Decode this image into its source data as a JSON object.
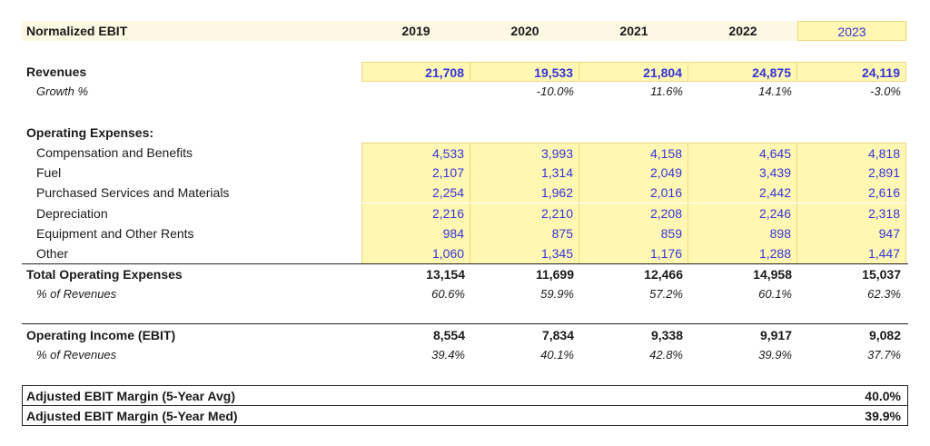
{
  "title": "Normalized EBIT",
  "years": [
    "2019",
    "2020",
    "2021",
    "2022",
    "2023"
  ],
  "revenues": {
    "label": "Revenues",
    "values": [
      "21,708",
      "19,533",
      "21,804",
      "24,875",
      "24,119"
    ]
  },
  "growth": {
    "label": "Growth %",
    "values": [
      "",
      "-10.0%",
      "11.6%",
      "14.1%",
      "-3.0%"
    ]
  },
  "opex_header": "Operating Expenses:",
  "opex_items": [
    {
      "label": "Compensation and Benefits",
      "values": [
        "4,533",
        "3,993",
        "4,158",
        "4,645",
        "4,818"
      ]
    },
    {
      "label": "Fuel",
      "values": [
        "2,107",
        "1,314",
        "2,049",
        "3,439",
        "2,891"
      ]
    },
    {
      "label": "Purchased Services and Materials",
      "values": [
        "2,254",
        "1,962",
        "2,016",
        "2,442",
        "2,616"
      ]
    },
    {
      "label": "Depreciation",
      "values": [
        "2,216",
        "2,210",
        "2,208",
        "2,246",
        "2,318"
      ]
    },
    {
      "label": "Equipment and Other Rents",
      "values": [
        "984",
        "875",
        "859",
        "898",
        "947"
      ]
    },
    {
      "label": "Other",
      "values": [
        "1,060",
        "1,345",
        "1,176",
        "1,288",
        "1,447"
      ]
    }
  ],
  "total_opex": {
    "label": "Total Operating Expenses",
    "values": [
      "13,154",
      "11,699",
      "12,466",
      "14,958",
      "15,037"
    ]
  },
  "opex_pct": {
    "label": "% of Revenues",
    "values": [
      "60.6%",
      "59.9%",
      "57.2%",
      "60.1%",
      "62.3%"
    ]
  },
  "ebit": {
    "label": "Operating Income (EBIT)",
    "values": [
      "8,554",
      "7,834",
      "9,338",
      "9,917",
      "9,082"
    ]
  },
  "ebit_pct": {
    "label": "% of Revenues",
    "values": [
      "39.4%",
      "40.1%",
      "42.8%",
      "39.9%",
      "37.7%"
    ]
  },
  "adj_avg": {
    "label": "Adjusted EBIT Margin (5-Year Avg)",
    "value": "40.0%"
  },
  "adj_med": {
    "label": "Adjusted EBIT Margin (5-Year Med)",
    "value": "39.9%"
  },
  "colors": {
    "input_fill": "#fff7b2",
    "input_text": "#3536d8",
    "header_fill": "#fdf8e4"
  }
}
